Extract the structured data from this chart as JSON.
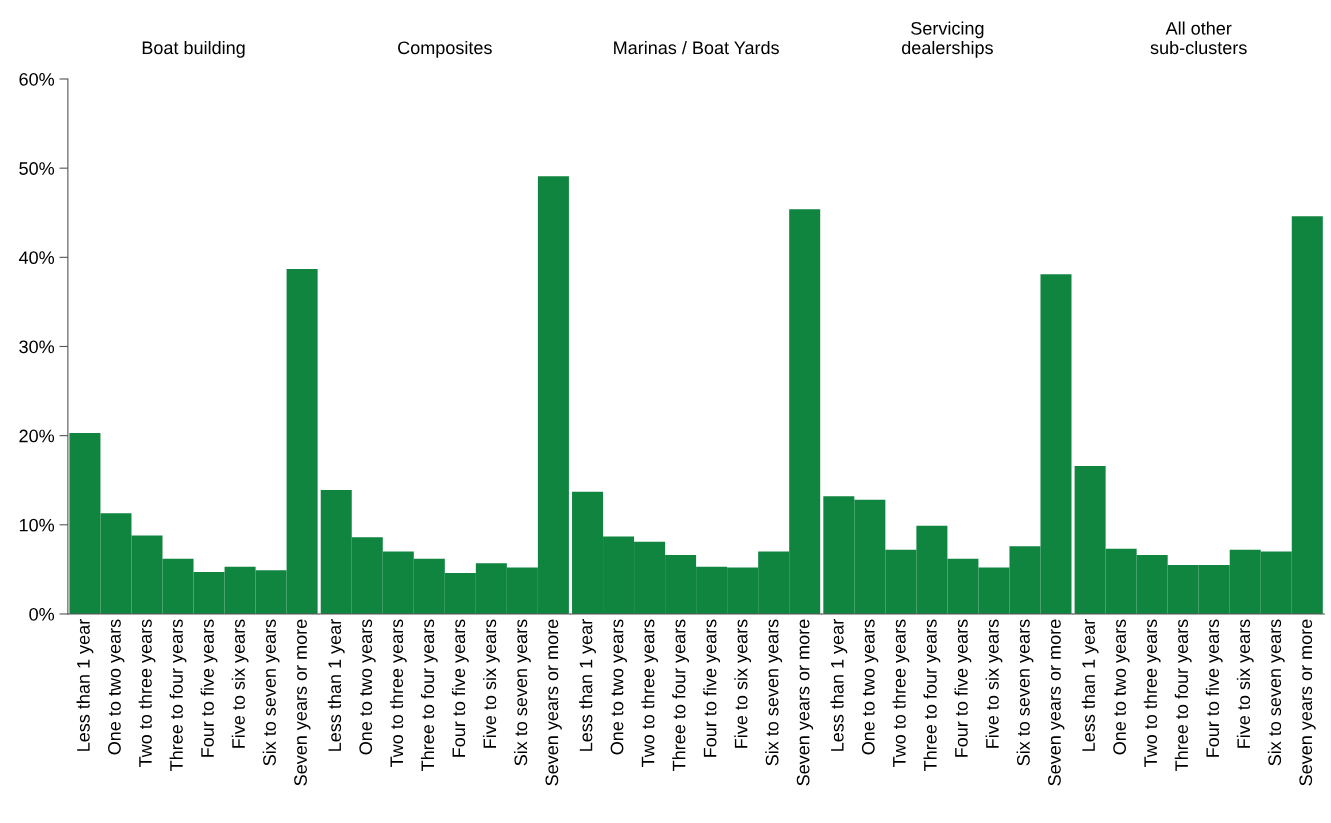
{
  "chart_data": [
    {
      "type": "bar",
      "title": "Boat building",
      "categories": [
        "Less than 1 year",
        "One to two years",
        "Two to three years",
        "Three to four years",
        "Four to five years",
        "Five to six years",
        "Six to seven years",
        "Seven years or more"
      ],
      "color": "#108540",
      "values": [
        20.3,
        11.3,
        8.8,
        6.2,
        4.7,
        5.3,
        4.9,
        38.7
      ],
      "ylim": [
        0,
        60
      ],
      "yticks": [
        {
          "value": 0,
          "label": "0%"
        },
        {
          "value": 10,
          "label": "10%"
        },
        {
          "value": 20,
          "label": "20%"
        },
        {
          "value": 30,
          "label": "30%"
        },
        {
          "value": 40,
          "label": "40%"
        },
        {
          "value": 50,
          "label": "50%"
        },
        {
          "value": 60,
          "label": "60%"
        }
      ]
    },
    {
      "type": "bar",
      "title": "Composites",
      "categories": [
        "Less than 1 year",
        "One to two years",
        "Two to three years",
        "Three to four years",
        "Four to five years",
        "Five to six years",
        "Six to seven years",
        "Seven years or more"
      ],
      "color": "#108540",
      "values": [
        13.9,
        8.6,
        7.0,
        6.2,
        4.6,
        5.7,
        5.2,
        49.1
      ],
      "ylim": [
        0,
        60
      ],
      "tick_labels": "x"
    },
    {
      "type": "bar",
      "title": "Marinas / Boat Yards",
      "categories": [
        "Less than 1 year",
        "One to two years",
        "Two to three years",
        "Three to four years",
        "Four to five years",
        "Five to six years",
        "Six to seven years",
        "Seven years or more"
      ],
      "color": "#108540",
      "values": [
        13.7,
        8.7,
        8.1,
        6.6,
        5.3,
        5.2,
        7.0,
        45.4
      ],
      "ylim": [
        0,
        60
      ],
      "tick_labels": "x"
    },
    {
      "type": "bar",
      "title": "Servicing\ndealerships",
      "categories": [
        "Less than 1 year",
        "One to two years",
        "Two to three years",
        "Three to four years",
        "Four to five years",
        "Five to six years",
        "Six to seven years",
        "Seven years or more"
      ],
      "color": "#108540",
      "values": [
        13.2,
        12.8,
        7.2,
        9.9,
        6.2,
        5.2,
        7.6,
        38.1
      ],
      "ylim": [
        0,
        60
      ],
      "tick_labels": "x"
    },
    {
      "type": "bar",
      "title": "All other\nsub-clusters",
      "categories": [
        "Less than 1 year",
        "One to two years",
        "Two to three years",
        "Three to four years",
        "Four to five years",
        "Five to six years",
        "Six to seven years",
        "Seven years or more"
      ],
      "color": "#108540",
      "values": [
        16.6,
        7.3,
        6.6,
        5.5,
        5.5,
        7.2,
        7.0,
        44.6
      ],
      "ylim": [
        0,
        60
      ],
      "tick_labels": "x"
    }
  ]
}
